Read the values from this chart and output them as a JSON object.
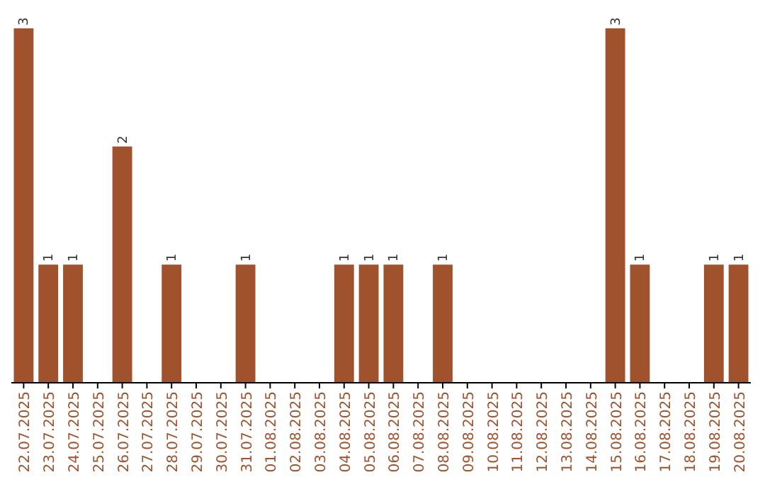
{
  "chart_data": {
    "type": "bar",
    "categories": [
      "22.07.2025",
      "23.07.2025",
      "24.07.2025",
      "25.07.2025",
      "26.07.2025",
      "27.07.2025",
      "28.07.2025",
      "29.07.2025",
      "30.07.2025",
      "31.07.2025",
      "01.08.2025",
      "02.08.2025",
      "03.08.2025",
      "04.08.2025",
      "05.08.2025",
      "06.08.2025",
      "07.08.2025",
      "08.08.2025",
      "09.08.2025",
      "10.08.2025",
      "11.08.2025",
      "12.08.2025",
      "13.08.2025",
      "14.08.2025",
      "15.08.2025",
      "16.08.2025",
      "17.08.2025",
      "18.08.2025",
      "19.08.2025",
      "20.08.2025"
    ],
    "values": [
      3,
      1,
      1,
      0,
      2,
      0,
      1,
      0,
      0,
      1,
      0,
      0,
      0,
      1,
      1,
      1,
      0,
      1,
      0,
      0,
      0,
      0,
      0,
      0,
      3,
      1,
      0,
      0,
      1,
      1
    ],
    "value_labels": [
      "3",
      "1",
      "1",
      null,
      "2",
      null,
      "1",
      null,
      null,
      "1",
      null,
      null,
      null,
      "1",
      "1",
      "1",
      null,
      "1",
      null,
      null,
      null,
      null,
      null,
      null,
      "3",
      "1",
      null,
      null,
      "1",
      "1"
    ],
    "color": "#a0522d"
  }
}
